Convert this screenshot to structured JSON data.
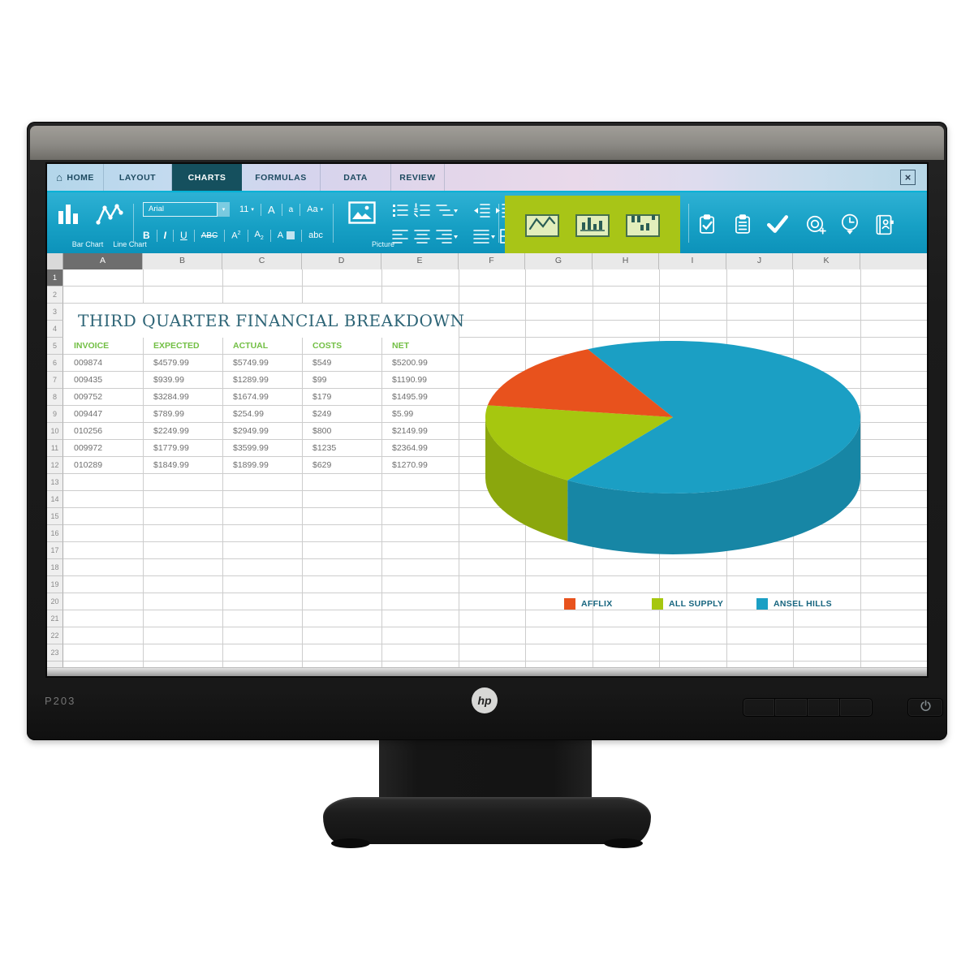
{
  "monitor": {
    "model": "P203",
    "brand": "hp"
  },
  "app": {
    "tab_bar": {
      "tabs": [
        {
          "label": "HOME",
          "icon": "home-icon",
          "active": false
        },
        {
          "label": "LAYOUT",
          "active": false
        },
        {
          "label": "CHARTS",
          "active": true
        },
        {
          "label": "FORMULAS",
          "active": false
        },
        {
          "label": "DATA",
          "active": false
        },
        {
          "label": "REVIEW",
          "active": false
        }
      ],
      "close_glyph": "×"
    },
    "ribbon": {
      "bar_chart_label": "Bar Chart",
      "line_chart_label": "Line Chart",
      "font_name": "Arial",
      "font_size": "11",
      "case_upper": "A",
      "case_lower": "a",
      "case_mixed": "Aa",
      "bold": "B",
      "italic": "I",
      "underline": "U",
      "strikethrough": "ABC",
      "superscript_base": "A",
      "superscript_mark": "2",
      "subscript_base": "A",
      "subscript_mark": "2",
      "highlight_base": "A",
      "clear_formatting": "abc",
      "picture_label": "Picture"
    }
  },
  "sheet": {
    "columns": [
      "A",
      "B",
      "C",
      "D",
      "E",
      "F",
      "G",
      "H",
      "I",
      "J",
      "K"
    ],
    "selected_column": "A",
    "row_count": 23,
    "selected_row": 1,
    "title": "THIRD QUARTER FINANCIAL BREAKDOWN",
    "table": {
      "headers": [
        "INVOICE",
        "EXPECTED",
        "ACTUAL",
        "COSTS",
        "NET"
      ],
      "rows": [
        [
          "009874",
          "$4579.99",
          "$5749.99",
          "$549",
          "$5200.99"
        ],
        [
          "009435",
          "$939.99",
          "$1289.99",
          "$99",
          "$1190.99"
        ],
        [
          "009752",
          "$3284.99",
          "$1674.99",
          "$179",
          "$1495.99"
        ],
        [
          "009447",
          "$789.99",
          "$254.99",
          "$249",
          "$5.99"
        ],
        [
          "010256",
          "$2249.99",
          "$2949.99",
          "$800",
          "$2149.99"
        ],
        [
          "009972",
          "$1779.99",
          "$3599.99",
          "$1235",
          "$2364.99"
        ],
        [
          "010289",
          "$1849.99",
          "$1899.99",
          "$629",
          "$1270.99"
        ]
      ]
    }
  },
  "chart_data": {
    "type": "pie",
    "style": "3d",
    "labels": [
      "AFFLIX",
      "ALL SUPPLY",
      "ANSEL HILLS"
    ],
    "values": [
      15,
      18,
      67
    ],
    "value_unit": "percent (estimated from slice angles)",
    "colors": [
      "#E8521D",
      "#A6C70F",
      "#1B9FC4"
    ],
    "start_angle_deg": 333,
    "legend_position": "bottom"
  },
  "colors": {
    "ribbon_accent": "#00B2D6",
    "active_tab": "#15505E",
    "chart_group_highlight": "#A8C517",
    "table_header_green": "#72BF44",
    "title_teal": "#2D6476",
    "legend_text": "#17657F"
  },
  "icons": {
    "home-icon": "⌂",
    "close-icon": "×",
    "dropdown-icon": "▾",
    "bar-chart-icon": "three vertical bars",
    "line-chart-icon": "zigzag line with points",
    "picture-icon": "framed mountain photo",
    "bullet-list-icon": "bulleted lines",
    "numbered-list-icon": "numbered lines",
    "multilevel-list-icon": "staggered lines with caret",
    "outdent-icon": "lines with left arrow",
    "indent-icon": "lines with right arrow",
    "align-left-icon": "left aligned lines",
    "align-center-icon": "centered lines",
    "align-right-icon": "right aligned lines with caret",
    "justify-icon": "justified lines with caret",
    "borders-grid-icon": "2x2 grid",
    "chart-line-box-icon": "line chart thumbnail",
    "chart-bars-box-icon": "bar chart thumbnail",
    "chart-scatter-box-icon": "scattered bars thumbnail",
    "clipboard-check-icon": "clipboard with check",
    "clipboard-list-icon": "clipboard with lines",
    "checkmark-icon": "check mark",
    "target-icon": "concentric circles with plus",
    "clock-icon": "clock with pointer",
    "address-book-icon": "book with person",
    "hp-logo": "hp",
    "power-icon": "power symbol"
  }
}
